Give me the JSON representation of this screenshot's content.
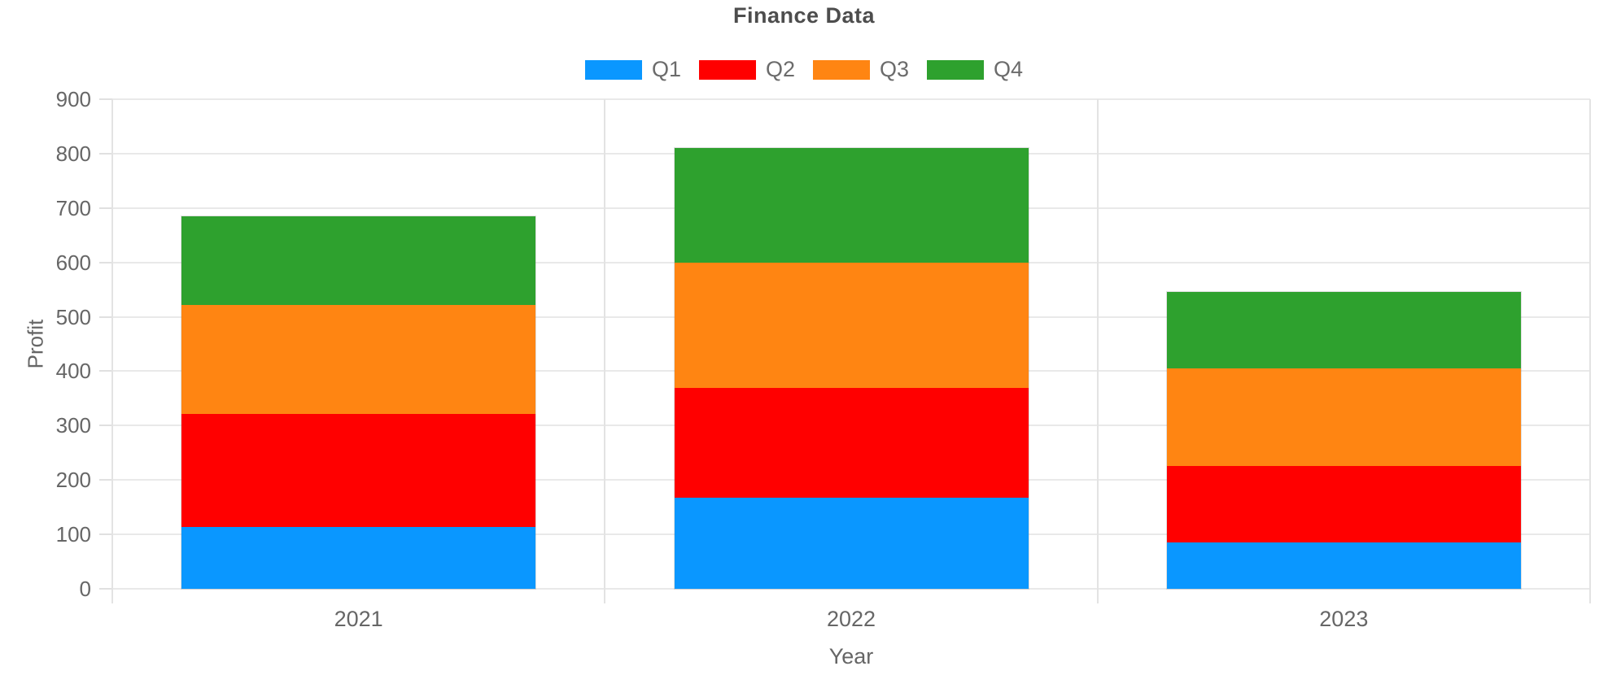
{
  "chart_data": {
    "type": "bar",
    "stacked": true,
    "title": "Finance Data",
    "xlabel": "Year",
    "ylabel": "Profit",
    "categories": [
      "2021",
      "2022",
      "2023"
    ],
    "series": [
      {
        "name": "Q1",
        "color": "#0a97ff",
        "values": [
          114,
          168,
          85
        ]
      },
      {
        "name": "Q2",
        "color": "#ff0000",
        "values": [
          207,
          201,
          141
        ]
      },
      {
        "name": "Q3",
        "color": "#ff8512",
        "values": [
          201,
          231,
          179
        ]
      },
      {
        "name": "Q4",
        "color": "#2ea12e",
        "values": [
          162,
          211,
          140
        ]
      }
    ],
    "stack_totals": [
      684,
      811,
      545
    ],
    "ylim": [
      0,
      900
    ],
    "ytick_step": 100,
    "ytick_labels": [
      "0",
      "100",
      "200",
      "300",
      "400",
      "500",
      "600",
      "700",
      "800",
      "900"
    ],
    "grid": true,
    "legend_position": "top-center",
    "colors_meta": {
      "gridline": "#e9e9e9",
      "separator": "#e3e3e3",
      "tick_text": "#666666",
      "title_text": "#4d4d4d"
    }
  }
}
